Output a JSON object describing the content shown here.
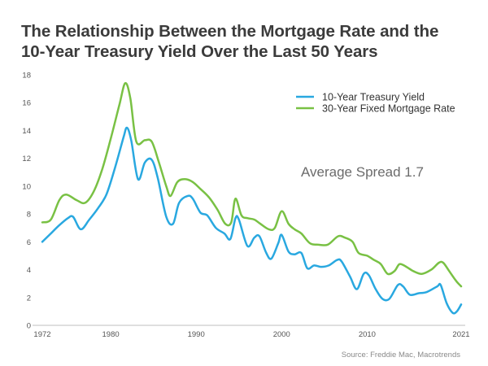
{
  "title_line1": "The Relationship Between the Mortgage Rate and the",
  "title_line2": "10-Year Treasury Yield Over the Last 50 Years",
  "chart_data": {
    "type": "line",
    "xlim": [
      1972,
      2021
    ],
    "ylim": [
      0,
      18
    ],
    "x_ticks": [
      "1972",
      "1980",
      "1990",
      "2000",
      "2010",
      "2021"
    ],
    "y_ticks": [
      "0",
      "2",
      "4",
      "6",
      "8",
      "10",
      "12",
      "14",
      "16",
      "18"
    ],
    "grid": false,
    "legend_position": "top-right",
    "annotation": "Average Spread 1.7",
    "source": "Source: Freddie Mac, Macrotrends",
    "series": [
      {
        "name": "10-Year Treasury Yield",
        "color": "#29a8e0",
        "points": [
          [
            1972,
            6.0
          ],
          [
            1973,
            6.6
          ],
          [
            1974,
            7.2
          ],
          [
            1975,
            7.7
          ],
          [
            1975.6,
            7.8
          ],
          [
            1976.5,
            6.9
          ],
          [
            1977.5,
            7.6
          ],
          [
            1978.5,
            8.4
          ],
          [
            1979.5,
            9.4
          ],
          [
            1980.5,
            11.3
          ],
          [
            1981.5,
            13.5
          ],
          [
            1981.9,
            14.2
          ],
          [
            1982.4,
            13.3
          ],
          [
            1983.2,
            10.5
          ],
          [
            1984,
            11.7
          ],
          [
            1984.8,
            11.9
          ],
          [
            1985.5,
            10.6
          ],
          [
            1986.5,
            7.8
          ],
          [
            1987.3,
            7.3
          ],
          [
            1988,
            8.8
          ],
          [
            1989,
            9.3
          ],
          [
            1989.6,
            9.1
          ],
          [
            1990.5,
            8.1
          ],
          [
            1991.3,
            7.9
          ],
          [
            1992.3,
            7.0
          ],
          [
            1993.3,
            6.6
          ],
          [
            1994,
            6.2
          ],
          [
            1994.6,
            7.7
          ],
          [
            1995,
            7.6
          ],
          [
            1996,
            5.7
          ],
          [
            1996.8,
            6.3
          ],
          [
            1997.4,
            6.4
          ],
          [
            1998.2,
            5.2
          ],
          [
            1998.8,
            4.8
          ],
          [
            1999.6,
            5.9
          ],
          [
            2000,
            6.5
          ],
          [
            2000.8,
            5.3
          ],
          [
            2001.5,
            5.1
          ],
          [
            2002.3,
            5.2
          ],
          [
            2003,
            4.1
          ],
          [
            2003.8,
            4.3
          ],
          [
            2004.6,
            4.2
          ],
          [
            2005.5,
            4.3
          ],
          [
            2006.5,
            4.7
          ],
          [
            2007,
            4.6
          ],
          [
            2008,
            3.5
          ],
          [
            2008.8,
            2.6
          ],
          [
            2009.6,
            3.7
          ],
          [
            2010.2,
            3.6
          ],
          [
            2011,
            2.6
          ],
          [
            2011.8,
            1.9
          ],
          [
            2012.6,
            1.9
          ],
          [
            2013.6,
            2.9
          ],
          [
            2014.2,
            2.8
          ],
          [
            2015,
            2.2
          ],
          [
            2016,
            2.3
          ],
          [
            2017,
            2.4
          ],
          [
            2018.2,
            2.8
          ],
          [
            2018.6,
            2.9
          ],
          [
            2019.3,
            1.6
          ],
          [
            2020,
            0.9
          ],
          [
            2020.5,
            1.0
          ],
          [
            2021,
            1.5
          ]
        ]
      },
      {
        "name": "30-Year Fixed Mortgage Rate",
        "color": "#79c144",
        "points": [
          [
            1972,
            7.4
          ],
          [
            1973,
            7.6
          ],
          [
            1974,
            9.0
          ],
          [
            1974.8,
            9.4
          ],
          [
            1976,
            9.0
          ],
          [
            1977,
            8.8
          ],
          [
            1978,
            9.6
          ],
          [
            1979,
            11.2
          ],
          [
            1980,
            13.4
          ],
          [
            1981,
            15.8
          ],
          [
            1981.7,
            17.4
          ],
          [
            1982.3,
            16.3
          ],
          [
            1983,
            13.2
          ],
          [
            1984,
            13.3
          ],
          [
            1984.8,
            13.2
          ],
          [
            1985.6,
            11.8
          ],
          [
            1986.5,
            10.0
          ],
          [
            1987,
            9.3
          ],
          [
            1987.8,
            10.3
          ],
          [
            1988.7,
            10.5
          ],
          [
            1989.6,
            10.3
          ],
          [
            1990.5,
            9.8
          ],
          [
            1991.5,
            9.2
          ],
          [
            1992.5,
            8.3
          ],
          [
            1993.4,
            7.3
          ],
          [
            1994.1,
            7.4
          ],
          [
            1994.6,
            9.1
          ],
          [
            1995.3,
            7.9
          ],
          [
            1996,
            7.7
          ],
          [
            1996.8,
            7.6
          ],
          [
            1997.5,
            7.3
          ],
          [
            1998.5,
            6.9
          ],
          [
            1999.2,
            7.0
          ],
          [
            2000,
            8.2
          ],
          [
            2000.8,
            7.3
          ],
          [
            2001.5,
            6.9
          ],
          [
            2002.3,
            6.6
          ],
          [
            2003.3,
            5.9
          ],
          [
            2004.2,
            5.8
          ],
          [
            2005.4,
            5.8
          ],
          [
            2006.6,
            6.4
          ],
          [
            2007.4,
            6.3
          ],
          [
            2008.3,
            6.0
          ],
          [
            2009,
            5.2
          ],
          [
            2010,
            5.0
          ],
          [
            2010.8,
            4.7
          ],
          [
            2011.6,
            4.4
          ],
          [
            2012.4,
            3.7
          ],
          [
            2013.2,
            3.9
          ],
          [
            2013.8,
            4.4
          ],
          [
            2014.6,
            4.2
          ],
          [
            2015.4,
            3.9
          ],
          [
            2016.4,
            3.7
          ],
          [
            2017.5,
            4.0
          ],
          [
            2018.4,
            4.5
          ],
          [
            2018.9,
            4.5
          ],
          [
            2019.6,
            3.9
          ],
          [
            2020.4,
            3.2
          ],
          [
            2021,
            2.8
          ]
        ]
      }
    ]
  }
}
